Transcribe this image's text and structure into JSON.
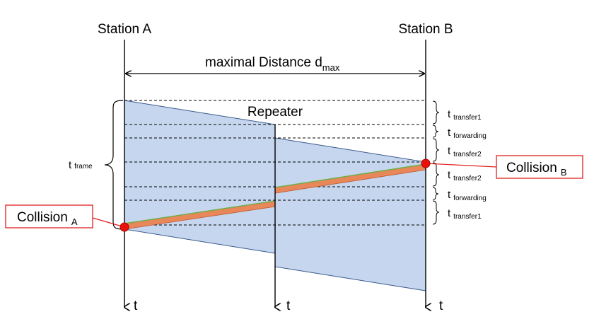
{
  "stations": {
    "a": {
      "label": "Station A"
    },
    "b": {
      "label": "Station B"
    },
    "repeater": {
      "label": "Repeater"
    }
  },
  "distance": {
    "label": "maximal Distance d",
    "subscript": "max"
  },
  "time_axis_label": "t",
  "frame": {
    "t": "t",
    "subscript": "frame"
  },
  "intervals": [
    {
      "t": "t",
      "subscript": "transfer1"
    },
    {
      "t": "t",
      "subscript": "forwarding"
    },
    {
      "t": "t",
      "subscript": "transfer2"
    },
    {
      "t": "t",
      "subscript": "transfer2"
    },
    {
      "t": "t",
      "subscript": "forwarding"
    },
    {
      "t": "t",
      "subscript": "transfer1"
    }
  ],
  "collisions": {
    "a": {
      "label": "Collision",
      "subscript": "A"
    },
    "b": {
      "label": "Collision",
      "subscript": "B"
    }
  },
  "colors": {
    "signal_fill": "#c5d6ee",
    "signal_stroke": "#3a5a8c",
    "collision_band": "#e8875a",
    "collision_edge": "#70ad47",
    "collision_dot": "#e8120c",
    "box_border": "#e02020"
  }
}
